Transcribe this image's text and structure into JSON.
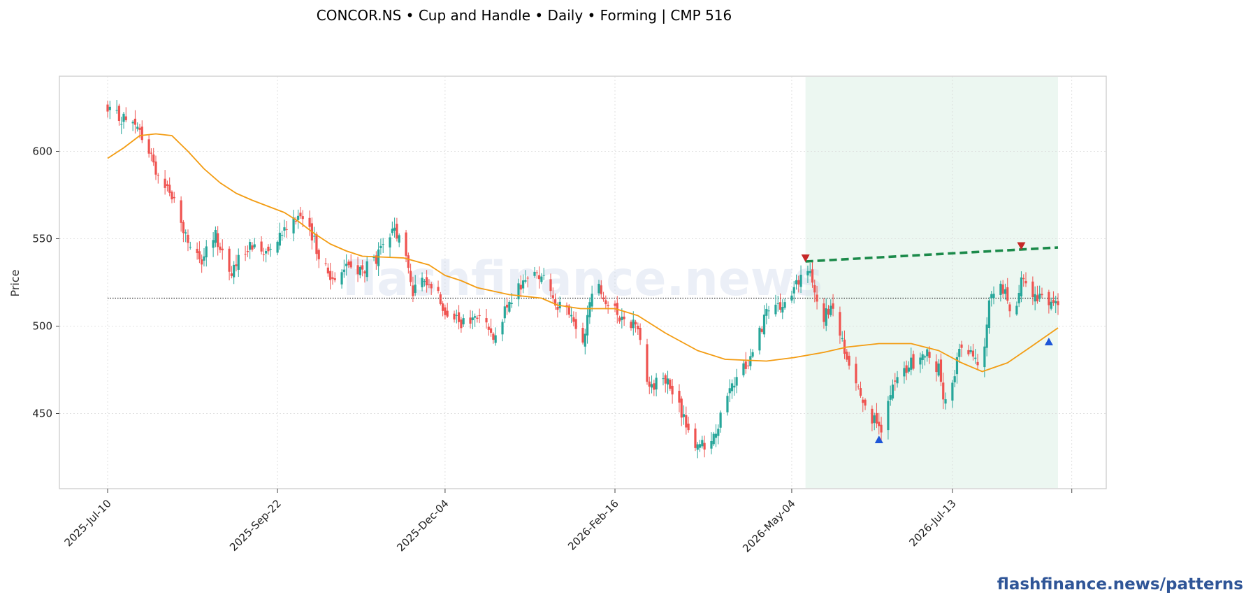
{
  "chart_data": {
    "type": "candlestick",
    "title": "CONCOR.NS  •  Cup and Handle  •  Daily  •  Forming  |  CMP 516",
    "ylabel": "Price",
    "xlabel": "",
    "watermark": "flashfinance.news",
    "brand": "flashfinance.news/patterns",
    "ylim": [
      407,
      643
    ],
    "yticks": [
      450,
      500,
      550,
      600
    ],
    "x_start": "2025-07-10",
    "x_end": "2026-08-28",
    "x_axis_end": "2026-09-03",
    "xticks": [
      {
        "date": "2025-07-10",
        "label": "2025-Jul-10"
      },
      {
        "date": "2025-09-22",
        "label": "2025-Sep-22"
      },
      {
        "date": "2025-12-04",
        "label": "2025-Dec-04"
      },
      {
        "date": "2026-02-16",
        "label": "2026-Feb-16"
      },
      {
        "date": "2026-05-04",
        "label": "2026-May-04"
      },
      {
        "date": "2026-07-13",
        "label": "2026-Jul-13"
      }
    ],
    "grid": true,
    "cmp": 516,
    "pattern_zone": {
      "start": "2026-05-10",
      "end": "2026-08-28"
    },
    "rim_line": {
      "start": {
        "date": "2026-05-10",
        "price": 537
      },
      "end": {
        "date": "2026-08-28",
        "price": 545
      }
    },
    "markers": [
      {
        "date": "2026-05-10",
        "price": 539,
        "kind": "peak"
      },
      {
        "date": "2026-06-11",
        "price": 435,
        "kind": "trough"
      },
      {
        "date": "2026-08-12",
        "price": 546,
        "kind": "peak"
      },
      {
        "date": "2026-08-24",
        "price": 491,
        "kind": "trough"
      }
    ],
    "close_anchors": [
      [
        "2025-07-10",
        622
      ],
      [
        "2025-07-17",
        619
      ],
      [
        "2025-07-24",
        611
      ],
      [
        "2025-07-31",
        590
      ],
      [
        "2025-08-07",
        575
      ],
      [
        "2025-08-12",
        555
      ],
      [
        "2025-08-19",
        535
      ],
      [
        "2025-08-26",
        552
      ],
      [
        "2025-09-02",
        530
      ],
      [
        "2025-09-09",
        546
      ],
      [
        "2025-09-16",
        543
      ],
      [
        "2025-09-24",
        555
      ],
      [
        "2025-10-01",
        565
      ],
      [
        "2025-10-08",
        548
      ],
      [
        "2025-10-15",
        527
      ],
      [
        "2025-10-22",
        535
      ],
      [
        "2025-10-29",
        531
      ],
      [
        "2025-11-05",
        540
      ],
      [
        "2025-11-12",
        555
      ],
      [
        "2025-11-16",
        545
      ],
      [
        "2025-11-20",
        520
      ],
      [
        "2025-11-27",
        527
      ],
      [
        "2025-12-04",
        510
      ],
      [
        "2025-12-11",
        500
      ],
      [
        "2025-12-18",
        505
      ],
      [
        "2025-12-25",
        496
      ],
      [
        "2026-01-01",
        512
      ],
      [
        "2026-01-08",
        528
      ],
      [
        "2026-01-15",
        530
      ],
      [
        "2026-01-22",
        512
      ],
      [
        "2026-01-28",
        505
      ],
      [
        "2026-02-01",
        485
      ],
      [
        "2026-02-04",
        505
      ],
      [
        "2026-02-08",
        530
      ],
      [
        "2026-02-13",
        510
      ],
      [
        "2026-02-20",
        505
      ],
      [
        "2026-02-26",
        500
      ],
      [
        "2026-03-03",
        465
      ],
      [
        "2026-03-10",
        470
      ],
      [
        "2026-03-17",
        450
      ],
      [
        "2026-03-24",
        430
      ],
      [
        "2026-03-31",
        436
      ],
      [
        "2026-04-05",
        455
      ],
      [
        "2026-04-10",
        470
      ],
      [
        "2026-04-16",
        482
      ],
      [
        "2026-04-23",
        508
      ],
      [
        "2026-04-30",
        510
      ],
      [
        "2026-05-05",
        520
      ],
      [
        "2026-05-10",
        535
      ],
      [
        "2026-05-14",
        520
      ],
      [
        "2026-05-18",
        505
      ],
      [
        "2026-05-22",
        510
      ],
      [
        "2026-05-28",
        480
      ],
      [
        "2026-06-04",
        460
      ],
      [
        "2026-06-09",
        445
      ],
      [
        "2026-06-12",
        442
      ],
      [
        "2026-06-18",
        468
      ],
      [
        "2026-06-25",
        478
      ],
      [
        "2026-07-01",
        485
      ],
      [
        "2026-07-07",
        475
      ],
      [
        "2026-07-10",
        455
      ],
      [
        "2026-07-17",
        490
      ],
      [
        "2026-07-22",
        485
      ],
      [
        "2026-07-26",
        475
      ],
      [
        "2026-07-29",
        515
      ],
      [
        "2026-08-02",
        525
      ],
      [
        "2026-08-06",
        515
      ],
      [
        "2026-08-09",
        505
      ],
      [
        "2026-08-12",
        530
      ],
      [
        "2026-08-16",
        518
      ],
      [
        "2026-08-20",
        515
      ],
      [
        "2026-08-24",
        510
      ],
      [
        "2026-08-28",
        516
      ]
    ],
    "ma_line": [
      [
        "2025-07-10",
        596
      ],
      [
        "2025-07-17",
        602
      ],
      [
        "2025-07-24",
        609
      ],
      [
        "2025-07-31",
        610
      ],
      [
        "2025-08-07",
        609
      ],
      [
        "2025-08-14",
        600
      ],
      [
        "2025-08-21",
        590
      ],
      [
        "2025-08-28",
        582
      ],
      [
        "2025-09-04",
        576
      ],
      [
        "2025-09-11",
        572
      ],
      [
        "2025-09-25",
        565
      ],
      [
        "2025-10-01",
        560
      ],
      [
        "2025-10-08",
        553
      ],
      [
        "2025-10-15",
        547
      ],
      [
        "2025-10-22",
        543
      ],
      [
        "2025-10-29",
        540
      ],
      [
        "2025-11-16",
        539
      ],
      [
        "2025-11-27",
        535
      ],
      [
        "2025-12-04",
        529
      ],
      [
        "2025-12-11",
        526
      ],
      [
        "2025-12-18",
        522
      ],
      [
        "2026-01-01",
        518
      ],
      [
        "2026-01-15",
        516
      ],
      [
        "2026-01-22",
        512
      ],
      [
        "2026-02-01",
        510
      ],
      [
        "2026-02-16",
        510
      ],
      [
        "2026-02-26",
        506
      ],
      [
        "2026-03-10",
        496
      ],
      [
        "2026-03-24",
        486
      ],
      [
        "2026-04-05",
        481
      ],
      [
        "2026-04-23",
        480
      ],
      [
        "2026-05-05",
        482
      ],
      [
        "2026-05-18",
        485
      ],
      [
        "2026-05-28",
        488
      ],
      [
        "2026-06-11",
        490
      ],
      [
        "2026-06-25",
        490
      ],
      [
        "2026-07-07",
        486
      ],
      [
        "2026-07-17",
        479
      ],
      [
        "2026-07-26",
        474
      ],
      [
        "2026-08-06",
        479
      ],
      [
        "2026-08-16",
        488
      ],
      [
        "2026-08-28",
        499
      ]
    ],
    "colors": {
      "up": "#26a69a",
      "down": "#ef5350",
      "ma": "#f39c12",
      "rim": "#1b8a4a",
      "zone": "#e6f4ec",
      "marker_peak": "#c62828",
      "marker_trough": "#1e56d8",
      "cmp_line": "#333333",
      "grid": "#d9d9d9",
      "frame": "#c8c8c8"
    }
  }
}
